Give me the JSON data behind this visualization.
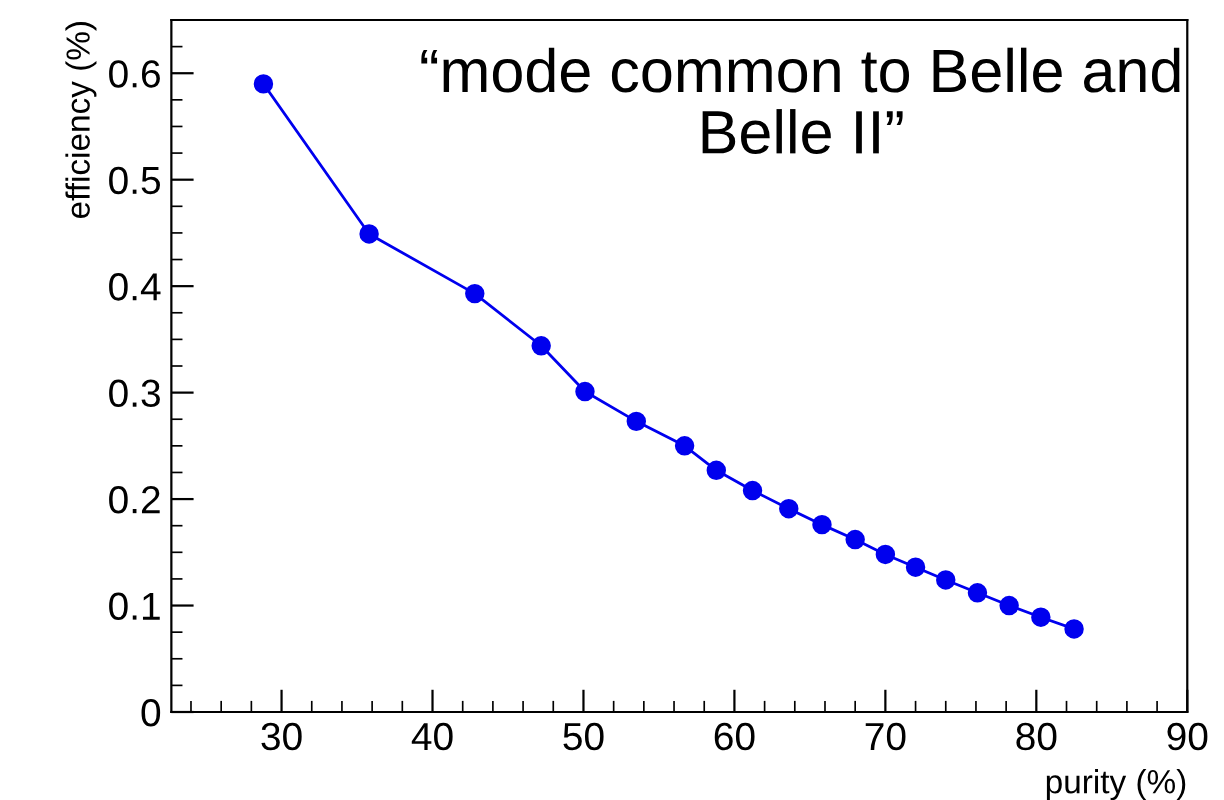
{
  "chart_data": {
    "type": "line",
    "xlabel": "purity (%)",
    "ylabel": "efficiency (%)",
    "annotations": [
      "“mode common to Belle and\nBelle II”"
    ],
    "series": [
      {
        "color": "#0000ee",
        "x": [
          28.8,
          35.8,
          42.8,
          47.2,
          50.1,
          53.5,
          56.7,
          58.8,
          61.2,
          63.6,
          65.8,
          68.0,
          70.0,
          72.0,
          74.0,
          76.1,
          78.2,
          80.3,
          82.5
        ],
        "values": [
          0.59,
          0.449,
          0.393,
          0.344,
          0.301,
          0.273,
          0.25,
          0.227,
          0.208,
          0.191,
          0.176,
          0.162,
          0.148,
          0.136,
          0.124,
          0.112,
          0.1,
          0.089,
          0.078
        ]
      }
    ],
    "marker": "circle",
    "line_style": "solid",
    "grid": false,
    "legend": false,
    "xlim": [
      22.7,
      90
    ],
    "xticks": [
      30,
      40,
      50,
      60,
      70,
      80,
      90
    ],
    "ylim": [
      0,
      0.65
    ],
    "yticks": [
      0,
      0.1,
      0.2,
      0.3,
      0.4,
      0.5,
      0.6
    ]
  }
}
